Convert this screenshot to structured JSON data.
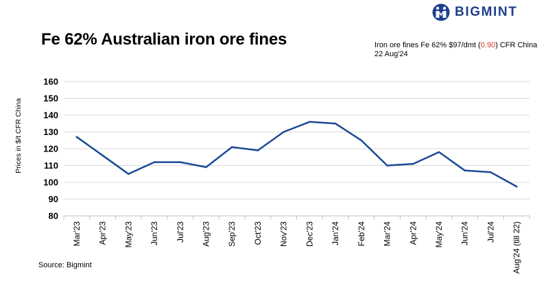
{
  "brand": {
    "name": "BIGMINT",
    "color": "#1c3f8f"
  },
  "title": "Fe 62% Australian iron ore fines",
  "subtitle": {
    "prefix": "Iron ore fines Fe 62% $97/dmt (",
    "change": "0.90",
    "suffix": ") CFR China 22 Aug'24",
    "change_color": "#d9302a"
  },
  "source": "Source: Bigmint",
  "chart_data": {
    "type": "line",
    "title": "Fe 62% Australian iron ore fines",
    "ylabel": "Prices in $/t CFR China",
    "xlabel": "",
    "ylim": [
      80,
      160
    ],
    "yticks": [
      80,
      90,
      100,
      110,
      120,
      130,
      140,
      150,
      160
    ],
    "grid": true,
    "categories": [
      "Mar'23",
      "Apr'23",
      "May'23",
      "Jun'23",
      "Jul'23",
      "Aug'23",
      "Sep'23",
      "Oct'23",
      "Nov'23",
      "Dec'23",
      "Jan'24",
      "Feb'24",
      "Mar'24",
      "Apr'24",
      "May'24",
      "Jun'24",
      "Jul'24",
      "Aug'24 (till 22)"
    ],
    "series": [
      {
        "values": [
          127,
          116,
          105,
          112,
          112,
          109,
          121,
          119,
          130,
          136,
          135,
          125,
          110,
          111,
          118,
          107,
          106,
          97.5
        ],
        "color": "#1a4a96"
      }
    ]
  }
}
